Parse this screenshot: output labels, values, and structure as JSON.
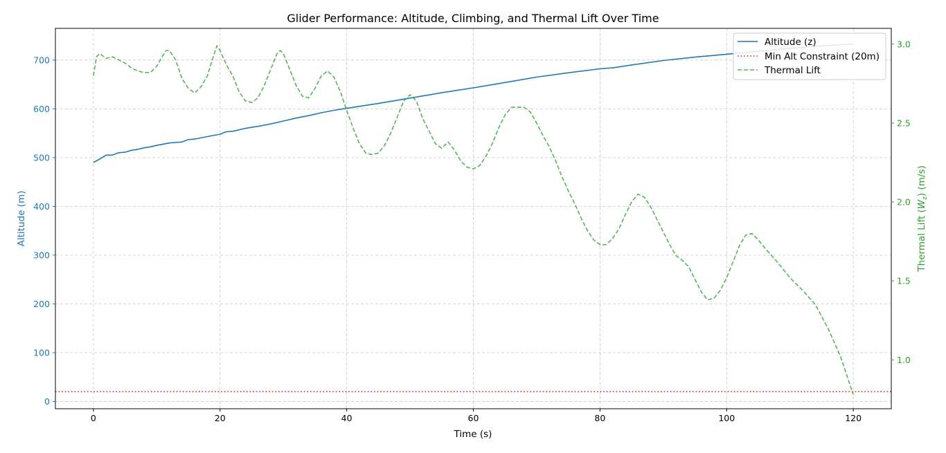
{
  "chart_data": {
    "type": "line",
    "title": "Glider Performance: Altitude, Climbing, and Thermal Lift Over Time",
    "xlabel": "Time (s)",
    "ylabel_left": "Altitude (m)",
    "ylabel_right": "Thermal Lift (W_z) (m/s)",
    "xlim": [
      -6,
      126
    ],
    "ylim_left": [
      -15,
      765
    ],
    "ylim_right": [
      0.69,
      3.1
    ],
    "xticks": [
      0,
      20,
      40,
      60,
      80,
      100,
      120
    ],
    "yticks_left": [
      0,
      100,
      200,
      300,
      400,
      500,
      600,
      700
    ],
    "yticks_right": [
      1.0,
      1.5,
      2.0,
      2.5,
      3.0
    ],
    "grid": true,
    "legend_position": "upper right",
    "colors": {
      "altitude": "#1f77b4",
      "constraint": "#d62728",
      "thermal": "#2ca02c"
    },
    "series": [
      {
        "name": "Altitude (z)",
        "axis": "left",
        "style": "solid",
        "x": [
          0,
          1,
          2,
          3,
          4,
          5,
          6,
          7,
          8,
          9,
          10,
          12,
          14,
          15,
          16,
          18,
          20,
          21,
          22,
          24,
          26,
          28,
          30,
          32,
          34,
          36,
          38,
          40,
          45,
          50,
          55,
          60,
          65,
          70,
          75,
          80,
          82,
          85,
          90,
          95,
          100,
          105,
          110,
          115,
          120
        ],
        "values": [
          490,
          497,
          505,
          505,
          510,
          511,
          515,
          517,
          520,
          522,
          525,
          530,
          532,
          537,
          538,
          543,
          548,
          553,
          554,
          560,
          564,
          569,
          575,
          581,
          586,
          592,
          597,
          601,
          611,
          622,
          633,
          643,
          654,
          665,
          674,
          682,
          684,
          690,
          699,
          706,
          712,
          718,
          724,
          729,
          733
        ]
      },
      {
        "name": "Min Alt Constraint (20m)",
        "axis": "left",
        "style": "dotted",
        "x": [
          -6,
          126
        ],
        "values": [
          20,
          20
        ]
      },
      {
        "name": "Thermal Lift",
        "axis": "right",
        "style": "dashed",
        "x": [
          0,
          0.5,
          1,
          2,
          3,
          4,
          5,
          6,
          7,
          8,
          9,
          10,
          11,
          11.5,
          12,
          13,
          14,
          15,
          16,
          17,
          18,
          19,
          19.5,
          20,
          21,
          22,
          23,
          24,
          25,
          26,
          27,
          28,
          29,
          29.5,
          30,
          31,
          32,
          33,
          34,
          35,
          36,
          37,
          38,
          39,
          40,
          41,
          42,
          43,
          44,
          45,
          46,
          47,
          48,
          49,
          50,
          51,
          52,
          53,
          54,
          55,
          56,
          57,
          58,
          59,
          60,
          61,
          62,
          63,
          64,
          65,
          66,
          67,
          68,
          69,
          70,
          71,
          72,
          73,
          74,
          75,
          76,
          77,
          78,
          79,
          80,
          81,
          82,
          83,
          84,
          85,
          86,
          87,
          88,
          89,
          90,
          91,
          92,
          93,
          94,
          95,
          96,
          97,
          98,
          99,
          100,
          101,
          102,
          103,
          104,
          105,
          106,
          108,
          110,
          112,
          114,
          116,
          118,
          120
        ],
        "values": [
          2.8,
          2.92,
          2.94,
          2.91,
          2.92,
          2.9,
          2.88,
          2.85,
          2.83,
          2.82,
          2.82,
          2.86,
          2.93,
          2.96,
          2.96,
          2.9,
          2.78,
          2.72,
          2.69,
          2.73,
          2.8,
          2.93,
          2.99,
          2.96,
          2.87,
          2.8,
          2.7,
          2.64,
          2.63,
          2.66,
          2.74,
          2.84,
          2.94,
          2.96,
          2.94,
          2.84,
          2.74,
          2.67,
          2.66,
          2.72,
          2.8,
          2.83,
          2.79,
          2.7,
          2.58,
          2.47,
          2.37,
          2.31,
          2.3,
          2.31,
          2.36,
          2.44,
          2.54,
          2.64,
          2.68,
          2.64,
          2.53,
          2.45,
          2.37,
          2.34,
          2.38,
          2.33,
          2.26,
          2.22,
          2.21,
          2.23,
          2.29,
          2.37,
          2.47,
          2.55,
          2.6,
          2.6,
          2.6,
          2.57,
          2.5,
          2.42,
          2.35,
          2.26,
          2.16,
          2.07,
          1.99,
          1.9,
          1.82,
          1.76,
          1.73,
          1.73,
          1.77,
          1.83,
          1.92,
          2.0,
          2.05,
          2.03,
          1.97,
          1.89,
          1.81,
          1.73,
          1.66,
          1.63,
          1.59,
          1.51,
          1.43,
          1.38,
          1.39,
          1.44,
          1.52,
          1.62,
          1.72,
          1.79,
          1.8,
          1.76,
          1.71,
          1.62,
          1.52,
          1.44,
          1.35,
          1.2,
          1.02,
          0.78
        ]
      }
    ]
  }
}
